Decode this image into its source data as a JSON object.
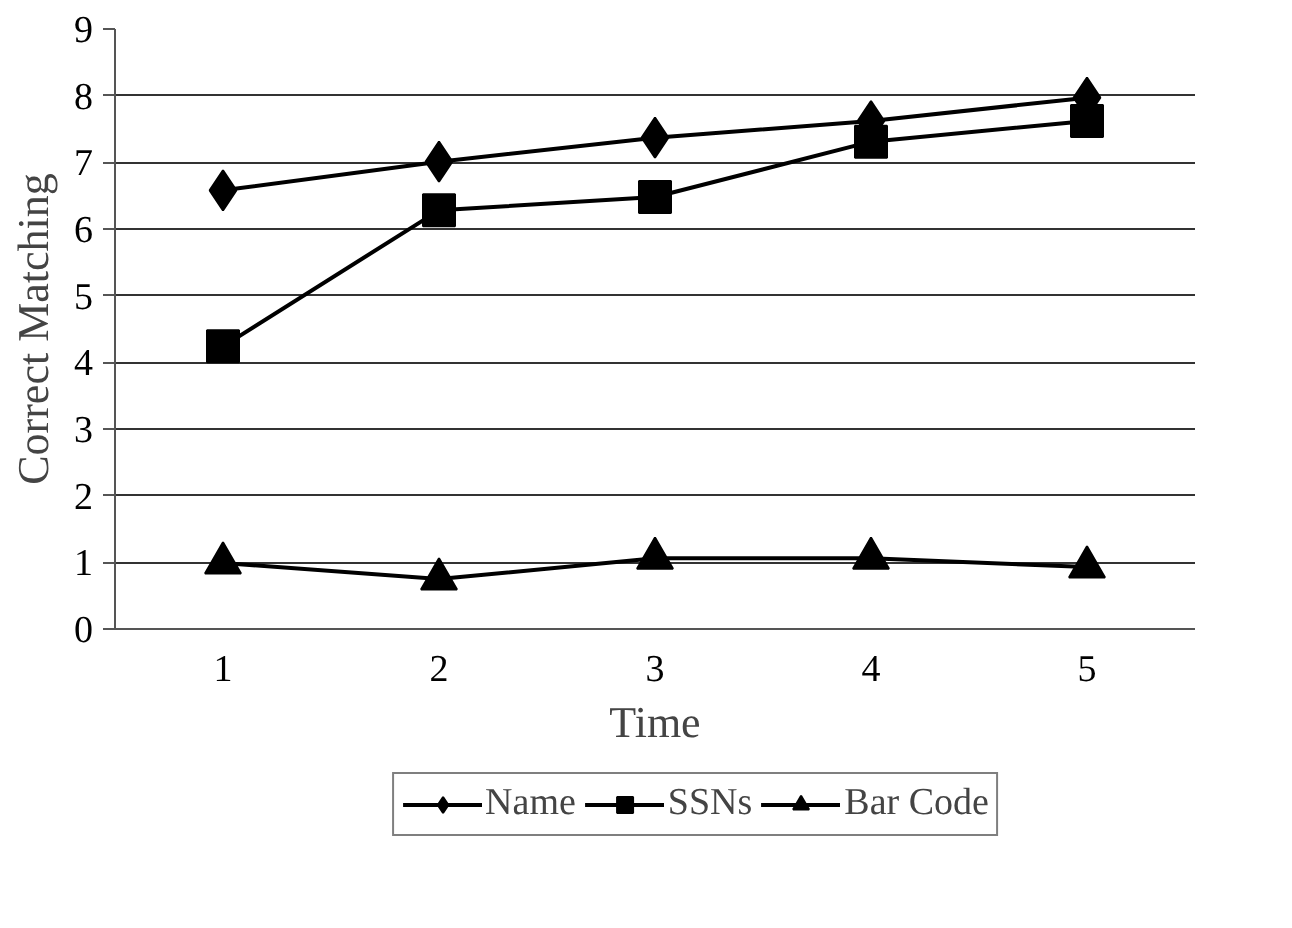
{
  "chart_data": {
    "type": "line",
    "xlabel": "Time",
    "ylabel": "Correct Matching",
    "categories": [
      "1",
      "2",
      "3",
      "4",
      "5"
    ],
    "series": [
      {
        "name": "Name",
        "color": "#000000",
        "marker": "diamond",
        "values": [
          6.58,
          7.01,
          7.37,
          7.62,
          7.97
        ]
      },
      {
        "name": "SSNs",
        "color": "#000000",
        "marker": "square",
        "values": [
          4.24,
          6.28,
          6.48,
          7.31,
          7.62
        ]
      },
      {
        "name": "Bar Code",
        "color": "#000000",
        "marker": "triangle",
        "values": [
          0.99,
          0.75,
          1.06,
          1.06,
          0.93
        ]
      }
    ],
    "ylim": [
      0,
      9
    ],
    "yticks": [
      0,
      1,
      2,
      3,
      4,
      5,
      6,
      7,
      8,
      9
    ],
    "grid": "y",
    "legend": "bottom",
    "line_style": "solid"
  }
}
